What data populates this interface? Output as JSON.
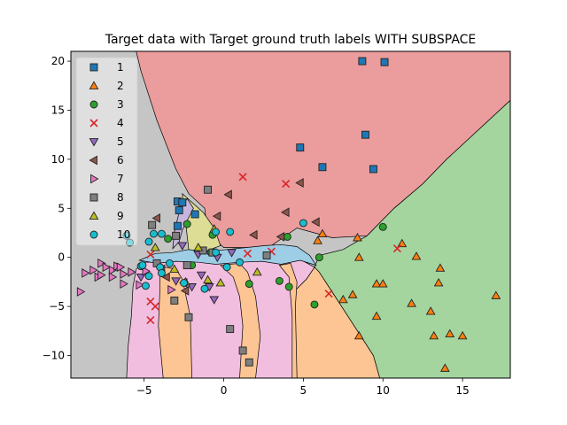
{
  "chart_data": {
    "type": "scatter",
    "title": "Target data with Target ground truth labels WITH SUBSPACE",
    "xlabel": "",
    "ylabel": "",
    "xlim": [
      -9.6,
      18.0
    ],
    "ylim": [
      -12.3,
      21.0
    ],
    "xticks": [
      -5,
      0,
      5,
      10,
      15
    ],
    "yticks": [
      -10,
      -5,
      0,
      5,
      10,
      15,
      20
    ],
    "grid": false,
    "legend_position": "upper-left",
    "series": [
      {
        "name": "1",
        "marker": "square",
        "color": "#1f77b4",
        "points": [
          [
            8.7,
            20.0
          ],
          [
            10.1,
            19.9
          ],
          [
            8.9,
            12.5
          ],
          [
            4.8,
            11.2
          ],
          [
            6.2,
            9.2
          ],
          [
            9.4,
            9.0
          ],
          [
            -2.9,
            5.7
          ],
          [
            -2.6,
            5.6
          ],
          [
            -2.8,
            4.8
          ],
          [
            -1.8,
            4.4
          ],
          [
            -2.9,
            3.2
          ]
        ]
      },
      {
        "name": "2",
        "marker": "triangle-up",
        "color": "#ff7f0e",
        "points": [
          [
            6.2,
            2.4
          ],
          [
            5.9,
            1.7
          ],
          [
            8.4,
            2.0
          ],
          [
            11.2,
            1.4
          ],
          [
            12.1,
            0.1
          ],
          [
            8.5,
            0.0
          ],
          [
            13.6,
            -1.1
          ],
          [
            9.6,
            -2.7
          ],
          [
            10.0,
            -2.7
          ],
          [
            13.5,
            -2.6
          ],
          [
            8.1,
            -3.8
          ],
          [
            7.5,
            -4.3
          ],
          [
            17.1,
            -3.9
          ],
          [
            11.8,
            -4.7
          ],
          [
            13.0,
            -5.5
          ],
          [
            9.6,
            -6.0
          ],
          [
            8.5,
            -8.0
          ],
          [
            13.2,
            -8.0
          ],
          [
            14.2,
            -7.8
          ],
          [
            15.0,
            -8.0
          ],
          [
            13.9,
            -11.3
          ]
        ]
      },
      {
        "name": "3",
        "marker": "circle",
        "color": "#2ca02c",
        "points": [
          [
            10.0,
            3.1
          ],
          [
            4.0,
            2.1
          ],
          [
            6.0,
            0.0
          ],
          [
            1.6,
            -2.7
          ],
          [
            3.5,
            -2.4
          ],
          [
            4.1,
            -3.0
          ],
          [
            5.7,
            -4.8
          ],
          [
            -2.3,
            3.4
          ],
          [
            -0.7,
            2.3
          ],
          [
            -0.8,
            0.5
          ],
          [
            -3.5,
            1.9
          ],
          [
            -2.0,
            -0.8
          ]
        ]
      },
      {
        "name": "4",
        "marker": "x",
        "color": "#d62728",
        "points": [
          [
            1.2,
            8.2
          ],
          [
            3.9,
            7.5
          ],
          [
            10.9,
            0.9
          ],
          [
            6.6,
            -3.7
          ],
          [
            -4.6,
            -4.5
          ],
          [
            -4.3,
            -5.0
          ],
          [
            -4.6,
            -6.4
          ],
          [
            1.5,
            0.4
          ],
          [
            3.0,
            0.6
          ],
          [
            -4.6,
            0.3
          ]
        ]
      },
      {
        "name": "5",
        "marker": "triangle-down",
        "color": "#9467bd",
        "points": [
          [
            -2.6,
            1.2
          ],
          [
            -1.6,
            0.3
          ],
          [
            -0.6,
            -4.3
          ],
          [
            -0.9,
            -3.0
          ],
          [
            -3.0,
            -2.4
          ],
          [
            -2.0,
            -3.0
          ],
          [
            -1.4,
            -1.8
          ],
          [
            0.5,
            0.5
          ],
          [
            -0.4,
            0.0
          ],
          [
            -5.2,
            -2.0
          ]
        ]
      },
      {
        "name": "6",
        "marker": "triangle-left",
        "color": "#8c564b",
        "points": [
          [
            4.8,
            7.6
          ],
          [
            0.3,
            6.4
          ],
          [
            -0.4,
            4.2
          ],
          [
            3.9,
            4.6
          ],
          [
            -4.2,
            4.0
          ],
          [
            5.8,
            3.6
          ],
          [
            1.9,
            2.3
          ],
          [
            3.6,
            2.1
          ],
          [
            -3.6,
            -2.0
          ],
          [
            -2.5,
            -2.6
          ],
          [
            -2.4,
            -3.4
          ],
          [
            -3.9,
            -1.2
          ]
        ]
      },
      {
        "name": "7",
        "marker": "triangle-right",
        "color": "#e377c2",
        "points": [
          [
            -8.7,
            -1.6
          ],
          [
            -8.2,
            -1.3
          ],
          [
            -7.7,
            -0.6
          ],
          [
            -7.4,
            -1.0
          ],
          [
            -7.9,
            -2.0
          ],
          [
            -7.0,
            -1.3
          ],
          [
            -6.7,
            -0.9
          ],
          [
            -7.0,
            -2.0
          ],
          [
            -6.3,
            -1.7
          ],
          [
            -5.8,
            -1.5
          ],
          [
            -6.3,
            -2.7
          ],
          [
            -5.3,
            -2.8
          ],
          [
            -9.0,
            -3.5
          ],
          [
            -7.7,
            -1.8
          ],
          [
            -4.9,
            -1.4
          ],
          [
            -3.3,
            -3.3
          ],
          [
            -6.5,
            -1.0
          ]
        ]
      },
      {
        "name": "8",
        "marker": "square",
        "color": "#7f7f7f",
        "points": [
          [
            -1.0,
            6.9
          ],
          [
            -4.5,
            3.3
          ],
          [
            -3.0,
            2.2
          ],
          [
            -2.3,
            -0.8
          ],
          [
            -3.1,
            -4.4
          ],
          [
            -2.2,
            -6.1
          ],
          [
            0.4,
            -7.3
          ],
          [
            1.2,
            -9.5
          ],
          [
            1.6,
            -10.7
          ],
          [
            -4.2,
            -0.6
          ],
          [
            -1.3,
            0.7
          ],
          [
            2.7,
            0.2
          ],
          [
            -0.7,
            0.5
          ]
        ]
      },
      {
        "name": "9",
        "marker": "triangle-up",
        "color": "#bcbd22",
        "points": [
          [
            -0.6,
            2.9
          ],
          [
            -4.3,
            1.0
          ],
          [
            -1.6,
            1.0
          ],
          [
            -1.0,
            -2.3
          ],
          [
            -2.4,
            -2.5
          ],
          [
            -3.1,
            -1.2
          ],
          [
            -0.2,
            -2.6
          ],
          [
            2.1,
            -1.5
          ]
        ]
      },
      {
        "name": "10",
        "marker": "circle",
        "color": "#17becf",
        "points": [
          [
            5.0,
            3.5
          ],
          [
            0.4,
            2.6
          ],
          [
            -0.5,
            2.6
          ],
          [
            -3.9,
            2.4
          ],
          [
            -4.4,
            2.4
          ],
          [
            -4.7,
            1.6
          ],
          [
            -5.9,
            1.5
          ],
          [
            -5.2,
            -0.9
          ],
          [
            -4.0,
            -1.0
          ],
          [
            -3.9,
            -1.6
          ],
          [
            -2.5,
            -2.6
          ],
          [
            -1.2,
            -3.2
          ],
          [
            0.2,
            -1.0
          ],
          [
            1.0,
            -0.5
          ],
          [
            -0.5,
            0.5
          ],
          [
            -6.1,
            2.2
          ],
          [
            -5.1,
            -0.8
          ],
          [
            -4.7,
            -1.9
          ],
          [
            -4.9,
            -2.9
          ],
          [
            -3.4,
            -0.6
          ]
        ]
      }
    ],
    "decision_regions": [
      {
        "label": "1",
        "color": "#eb9c9c"
      },
      {
        "label": "2",
        "color": "#fcc593"
      },
      {
        "label": "3",
        "color": "#a5d59f"
      },
      {
        "label": "5",
        "color": "#c7b5de"
      },
      {
        "label": "7",
        "color": "#f2bedf"
      },
      {
        "label": "8",
        "color": "#c5c5c5"
      },
      {
        "label": "9",
        "color": "#dddd95"
      },
      {
        "label": "10",
        "color": "#9ecde6"
      }
    ]
  }
}
